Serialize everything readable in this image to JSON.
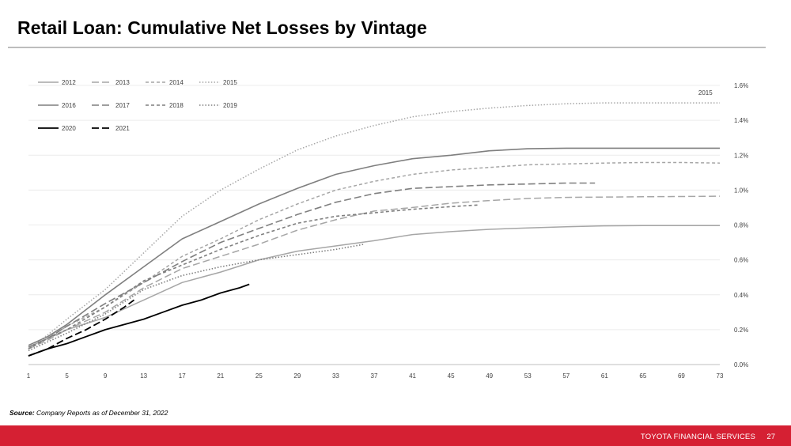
{
  "title": "Retail Loan: Cumulative Net Losses by Vintage",
  "source": {
    "label": "Source:",
    "text": " Company Reports as of December 31, 2022"
  },
  "footer": {
    "brand": "TOYOTA FINANCIAL SERVICES",
    "page": "27"
  },
  "colors": {
    "accent_red": "#d52033"
  },
  "chart_data": {
    "type": "line",
    "title": "Retail Loan: Cumulative Net Losses by Vintage",
    "xlabel": "",
    "ylabel": "",
    "xlim": [
      1,
      73
    ],
    "ylim": [
      0,
      1.6
    ],
    "x_ticks": [
      "1",
      "5",
      "9",
      "13",
      "17",
      "21",
      "25",
      "29",
      "33",
      "37",
      "41",
      "45",
      "49",
      "53",
      "57",
      "61",
      "65",
      "69",
      "73"
    ],
    "y_ticks": [
      "0.0%",
      "0.2%",
      "0.4%",
      "0.6%",
      "0.8%",
      "1.0%",
      "1.2%",
      "1.4%",
      "1.6%"
    ],
    "y_axis_position": "right",
    "grid": true,
    "legend_position": "top-left",
    "annotations": [
      {
        "text": "2015",
        "x": 71.5,
        "y": 1.56
      }
    ],
    "series": [
      {
        "name": "2012",
        "color": "#a6a6a6",
        "dash": "solid",
        "width": 1.5,
        "points": [
          [
            1,
            0.1
          ],
          [
            3,
            0.15
          ],
          [
            5,
            0.2
          ],
          [
            9,
            0.27
          ],
          [
            13,
            0.37
          ],
          [
            17,
            0.47
          ],
          [
            21,
            0.53
          ],
          [
            25,
            0.6
          ],
          [
            29,
            0.65
          ],
          [
            33,
            0.68
          ],
          [
            37,
            0.71
          ],
          [
            41,
            0.745
          ],
          [
            45,
            0.762
          ],
          [
            49,
            0.775
          ],
          [
            53,
            0.783
          ],
          [
            57,
            0.79
          ],
          [
            61,
            0.795
          ],
          [
            65,
            0.797
          ],
          [
            69,
            0.797
          ],
          [
            73,
            0.797
          ]
        ]
      },
      {
        "name": "2013",
        "color": "#a6a6a6",
        "dash": "long",
        "width": 1.5,
        "points": [
          [
            1,
            0.09
          ],
          [
            3,
            0.14
          ],
          [
            5,
            0.2
          ],
          [
            9,
            0.3
          ],
          [
            13,
            0.44
          ],
          [
            17,
            0.55
          ],
          [
            21,
            0.62
          ],
          [
            25,
            0.69
          ],
          [
            29,
            0.77
          ],
          [
            33,
            0.83
          ],
          [
            37,
            0.88
          ],
          [
            41,
            0.9
          ],
          [
            45,
            0.925
          ],
          [
            49,
            0.94
          ],
          [
            53,
            0.952
          ],
          [
            57,
            0.958
          ],
          [
            61,
            0.96
          ],
          [
            65,
            0.962
          ],
          [
            69,
            0.963
          ],
          [
            73,
            0.965
          ]
        ]
      },
      {
        "name": "2014",
        "color": "#a6a6a6",
        "dash": "dash",
        "width": 1.5,
        "points": [
          [
            1,
            0.09
          ],
          [
            3,
            0.15
          ],
          [
            5,
            0.22
          ],
          [
            9,
            0.33
          ],
          [
            13,
            0.47
          ],
          [
            17,
            0.62
          ],
          [
            21,
            0.72
          ],
          [
            25,
            0.83
          ],
          [
            29,
            0.92
          ],
          [
            33,
            1.0
          ],
          [
            37,
            1.05
          ],
          [
            41,
            1.09
          ],
          [
            45,
            1.115
          ],
          [
            49,
            1.13
          ],
          [
            53,
            1.145
          ],
          [
            57,
            1.15
          ],
          [
            61,
            1.155
          ],
          [
            65,
            1.158
          ],
          [
            69,
            1.158
          ],
          [
            73,
            1.155
          ]
        ]
      },
      {
        "name": "2015",
        "color": "#a6a6a6",
        "dash": "dot",
        "width": 1.5,
        "points": [
          [
            1,
            0.09
          ],
          [
            3,
            0.17
          ],
          [
            5,
            0.26
          ],
          [
            9,
            0.43
          ],
          [
            13,
            0.64
          ],
          [
            17,
            0.85
          ],
          [
            21,
            1.0
          ],
          [
            25,
            1.12
          ],
          [
            29,
            1.23
          ],
          [
            33,
            1.31
          ],
          [
            37,
            1.37
          ],
          [
            41,
            1.42
          ],
          [
            45,
            1.45
          ],
          [
            49,
            1.47
          ],
          [
            53,
            1.485
          ],
          [
            57,
            1.495
          ],
          [
            61,
            1.5
          ],
          [
            65,
            1.5
          ],
          [
            69,
            1.5
          ],
          [
            73,
            1.5
          ]
        ]
      },
      {
        "name": "2016",
        "color": "#7f7f7f",
        "dash": "solid",
        "width": 1.6,
        "points": [
          [
            1,
            0.11
          ],
          [
            3,
            0.16
          ],
          [
            5,
            0.23
          ],
          [
            9,
            0.4
          ],
          [
            13,
            0.56
          ],
          [
            17,
            0.72
          ],
          [
            21,
            0.82
          ],
          [
            25,
            0.92
          ],
          [
            29,
            1.01
          ],
          [
            33,
            1.09
          ],
          [
            37,
            1.14
          ],
          [
            41,
            1.18
          ],
          [
            45,
            1.2
          ],
          [
            49,
            1.225
          ],
          [
            53,
            1.237
          ],
          [
            57,
            1.24
          ],
          [
            61,
            1.24
          ],
          [
            65,
            1.24
          ],
          [
            69,
            1.24
          ],
          [
            73,
            1.24
          ]
        ]
      },
      {
        "name": "2017",
        "color": "#7f7f7f",
        "dash": "long",
        "width": 1.6,
        "points": [
          [
            1,
            0.1
          ],
          [
            3,
            0.15
          ],
          [
            5,
            0.22
          ],
          [
            9,
            0.35
          ],
          [
            13,
            0.47
          ],
          [
            17,
            0.59
          ],
          [
            21,
            0.7
          ],
          [
            25,
            0.78
          ],
          [
            29,
            0.86
          ],
          [
            33,
            0.93
          ],
          [
            37,
            0.98
          ],
          [
            41,
            1.01
          ],
          [
            45,
            1.02
          ],
          [
            49,
            1.03
          ],
          [
            53,
            1.035
          ],
          [
            57,
            1.04
          ],
          [
            60,
            1.04
          ]
        ]
      },
      {
        "name": "2018",
        "color": "#7f7f7f",
        "dash": "dash",
        "width": 1.6,
        "points": [
          [
            1,
            0.09
          ],
          [
            3,
            0.15
          ],
          [
            5,
            0.2
          ],
          [
            9,
            0.33
          ],
          [
            13,
            0.48
          ],
          [
            17,
            0.57
          ],
          [
            21,
            0.66
          ],
          [
            25,
            0.74
          ],
          [
            29,
            0.81
          ],
          [
            33,
            0.85
          ],
          [
            37,
            0.87
          ],
          [
            41,
            0.89
          ],
          [
            45,
            0.905
          ],
          [
            48,
            0.915
          ]
        ]
      },
      {
        "name": "2019",
        "color": "#7f7f7f",
        "dash": "dot",
        "width": 1.6,
        "points": [
          [
            1,
            0.08
          ],
          [
            3,
            0.13
          ],
          [
            5,
            0.18
          ],
          [
            9,
            0.29
          ],
          [
            13,
            0.43
          ],
          [
            17,
            0.51
          ],
          [
            21,
            0.56
          ],
          [
            25,
            0.6
          ],
          [
            29,
            0.63
          ],
          [
            33,
            0.66
          ],
          [
            36,
            0.69
          ]
        ]
      },
      {
        "name": "2020",
        "color": "#000000",
        "dash": "solid",
        "width": 1.8,
        "points": [
          [
            1,
            0.05
          ],
          [
            3,
            0.09
          ],
          [
            5,
            0.12
          ],
          [
            7,
            0.16
          ],
          [
            9,
            0.2
          ],
          [
            11,
            0.23
          ],
          [
            13,
            0.26
          ],
          [
            15,
            0.3
          ],
          [
            17,
            0.34
          ],
          [
            19,
            0.37
          ],
          [
            21,
            0.41
          ],
          [
            23,
            0.44
          ],
          [
            24,
            0.46
          ]
        ]
      },
      {
        "name": "2021",
        "color": "#000000",
        "dash": "long",
        "width": 1.8,
        "points": [
          [
            1,
            0.05
          ],
          [
            3,
            0.09
          ],
          [
            5,
            0.15
          ],
          [
            7,
            0.2
          ],
          [
            9,
            0.26
          ],
          [
            11,
            0.33
          ],
          [
            12,
            0.37
          ]
        ]
      }
    ]
  }
}
